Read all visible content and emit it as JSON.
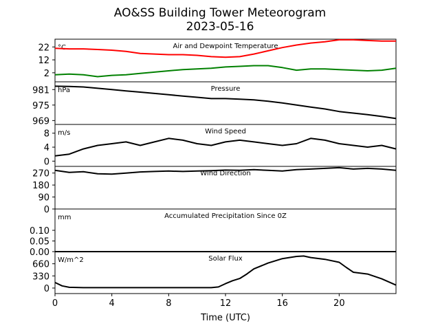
{
  "figure": {
    "title_line1": "AO&SS Building Tower Meteorogram",
    "title_line2": "2023-05-16",
    "xlabel": "Time (UTC)"
  },
  "chart_data": [
    {
      "type": "line",
      "title": "Air and Dewpoint Temperature",
      "unit": "°C",
      "x_range": [
        0,
        24
      ],
      "ylim": [
        -5,
        28
      ],
      "yticks": [
        2,
        12,
        22
      ],
      "series": [
        {
          "color": "#ff0000",
          "x": [
            0,
            1,
            2,
            3,
            4,
            5,
            6,
            7,
            8,
            9,
            10,
            11,
            12,
            13,
            14,
            15,
            16,
            17,
            18,
            19,
            20,
            21,
            22,
            23,
            24
          ],
          "y": [
            21,
            20.5,
            20.5,
            20,
            19.5,
            18.5,
            17,
            16.5,
            16,
            16,
            15.5,
            14.5,
            14,
            14.5,
            16.5,
            19,
            21.5,
            23.5,
            25,
            26,
            27.5,
            27.5,
            27,
            26.5,
            26.5
          ]
        },
        {
          "color": "#008000",
          "x": [
            0,
            1,
            2,
            3,
            4,
            5,
            6,
            7,
            8,
            9,
            10,
            11,
            12,
            13,
            14,
            15,
            16,
            17,
            18,
            19,
            20,
            21,
            22,
            23,
            24
          ],
          "y": [
            0.5,
            1,
            0.5,
            -1,
            0,
            0.5,
            1.5,
            2.5,
            3.5,
            4.5,
            5,
            5.5,
            6.5,
            7,
            7.5,
            7.5,
            6,
            4,
            5,
            5,
            4.5,
            4,
            3.5,
            4,
            5.5
          ]
        }
      ]
    },
    {
      "type": "line",
      "title": "Pressure",
      "unit": "hPa",
      "x_range": [
        0,
        24
      ],
      "ylim": [
        967.5,
        984
      ],
      "yticks": [
        969,
        975,
        981
      ],
      "series": [
        {
          "color": "#000000",
          "x": [
            0,
            1,
            2,
            3,
            4,
            5,
            6,
            7,
            8,
            9,
            10,
            11,
            12,
            13,
            14,
            15,
            16,
            17,
            18,
            19,
            20,
            21,
            22,
            23,
            24
          ],
          "y": [
            982.3,
            982.2,
            982,
            981.5,
            981,
            980.5,
            980,
            979.5,
            979,
            978.5,
            978,
            977.5,
            977.5,
            977.3,
            977,
            976.5,
            975.8,
            975,
            974.2,
            973.5,
            972.5,
            971.9,
            971.3,
            970.6,
            969.8
          ]
        }
      ]
    },
    {
      "type": "line",
      "title": "Wind Speed",
      "unit": "m/s",
      "x_range": [
        0,
        24
      ],
      "ylim": [
        -1.5,
        10.5
      ],
      "yticks": [
        0,
        4,
        8
      ],
      "series": [
        {
          "color": "#000000",
          "x": [
            0,
            1,
            2,
            3,
            4,
            5,
            6,
            7,
            8,
            9,
            10,
            11,
            12,
            13,
            14,
            15,
            16,
            17,
            18,
            19,
            20,
            21,
            22,
            23,
            24
          ],
          "y": [
            1.5,
            2,
            3.5,
            4.5,
            5,
            5.5,
            4.5,
            5.5,
            6.5,
            6,
            5,
            4.5,
            5.5,
            6,
            5.5,
            5,
            4.5,
            5,
            6.5,
            6,
            5,
            4.5,
            4,
            4.5,
            3.5
          ]
        }
      ]
    },
    {
      "type": "line",
      "title": "Wind Direction",
      "unit": "",
      "x_range": [
        0,
        24
      ],
      "ylim": [
        0,
        320
      ],
      "yticks": [
        0,
        90,
        180,
        270
      ],
      "series": [
        {
          "color": "#000000",
          "x": [
            0,
            1,
            2,
            3,
            4,
            5,
            6,
            7,
            8,
            9,
            10,
            11,
            12,
            13,
            14,
            15,
            16,
            17,
            18,
            19,
            20,
            21,
            22,
            23,
            24
          ],
          "y": [
            290,
            275,
            280,
            265,
            262,
            270,
            278,
            282,
            285,
            282,
            285,
            288,
            292,
            290,
            295,
            290,
            285,
            295,
            300,
            305,
            310,
            300,
            305,
            300,
            290
          ]
        }
      ]
    },
    {
      "type": "line",
      "title": "Accumulated Precipitation Since 0Z",
      "unit": "mm",
      "x_range": [
        0,
        24
      ],
      "ylim": [
        0,
        0.2
      ],
      "yticks": [
        0.0,
        0.05,
        0.1
      ],
      "ytick_labels": [
        "0.00",
        "0.05",
        "0.10"
      ],
      "series": [
        {
          "color": "#000000",
          "x": [
            0,
            24
          ],
          "y": [
            0,
            0
          ]
        }
      ]
    },
    {
      "type": "line",
      "title": "Solar Flux",
      "unit": "W/m^2",
      "x_range": [
        0,
        24
      ],
      "ylim": [
        -150,
        990
      ],
      "yticks": [
        0,
        330,
        660
      ],
      "series": [
        {
          "color": "#000000",
          "x": [
            0,
            0.5,
            1,
            2,
            3,
            4,
            5,
            6,
            7,
            8,
            9,
            10,
            11,
            11.5,
            12,
            12.5,
            13,
            13.5,
            14,
            15,
            16,
            17,
            17.5,
            18,
            19,
            20,
            20.5,
            21,
            22,
            23,
            24
          ],
          "y": [
            150,
            60,
            20,
            10,
            10,
            10,
            10,
            10,
            10,
            10,
            10,
            10,
            10,
            30,
            120,
            200,
            260,
            380,
            520,
            680,
            800,
            860,
            870,
            830,
            780,
            700,
            560,
            430,
            380,
            250,
            80
          ]
        }
      ]
    }
  ],
  "x_ticks": [
    0,
    4,
    8,
    12,
    16,
    20
  ]
}
